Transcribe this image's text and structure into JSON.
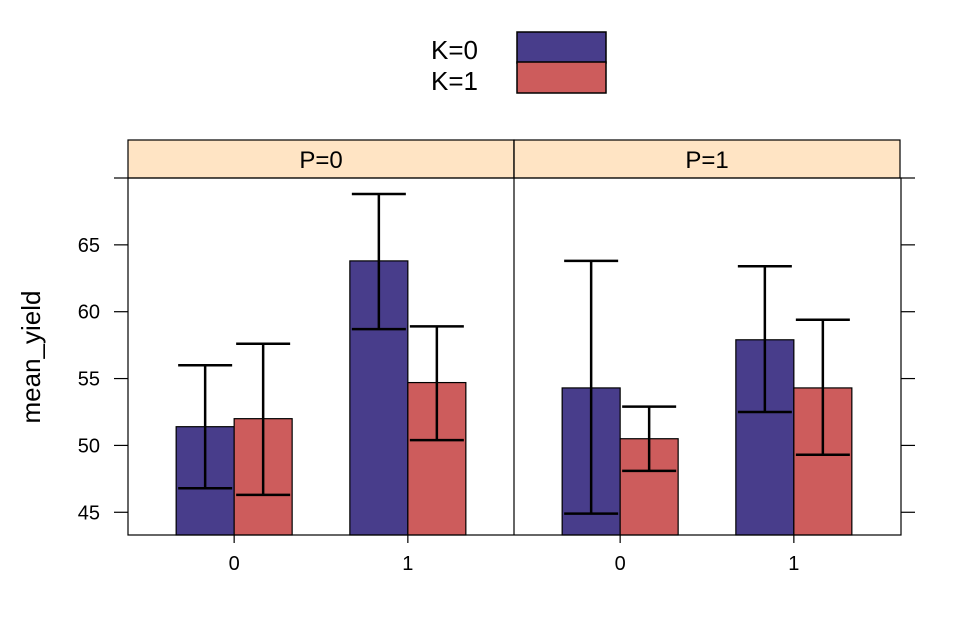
{
  "chart_data": {
    "type": "bar",
    "ylabel": "mean_yield",
    "xlabel": "",
    "ylim": [
      43.3,
      70.0
    ],
    "yticks": [
      45,
      50,
      55,
      60,
      65
    ],
    "categories": [
      "0",
      "1"
    ],
    "legend": {
      "position": "top",
      "entries": [
        {
          "label": "K=0",
          "color": "#483D8B"
        },
        {
          "label": "K=1",
          "color": "#CD5C5C"
        }
      ]
    },
    "strip_color": "#FFE4C4",
    "panels": [
      {
        "label": "P=0",
        "series": [
          {
            "name": "K=0",
            "values": [
              51.4,
              63.8
            ],
            "lower": [
              46.8,
              58.7
            ],
            "upper": [
              56.0,
              68.8
            ]
          },
          {
            "name": "K=1",
            "values": [
              52.0,
              54.7
            ],
            "lower": [
              46.3,
              50.4
            ],
            "upper": [
              57.6,
              58.9
            ]
          }
        ]
      },
      {
        "label": "P=1",
        "series": [
          {
            "name": "K=0",
            "values": [
              54.3,
              57.9
            ],
            "lower": [
              44.9,
              52.5
            ],
            "upper": [
              63.8,
              63.4
            ]
          },
          {
            "name": "K=1",
            "values": [
              50.5,
              54.3
            ],
            "lower": [
              48.1,
              49.3
            ],
            "upper": [
              52.9,
              59.4
            ]
          }
        ]
      }
    ]
  }
}
